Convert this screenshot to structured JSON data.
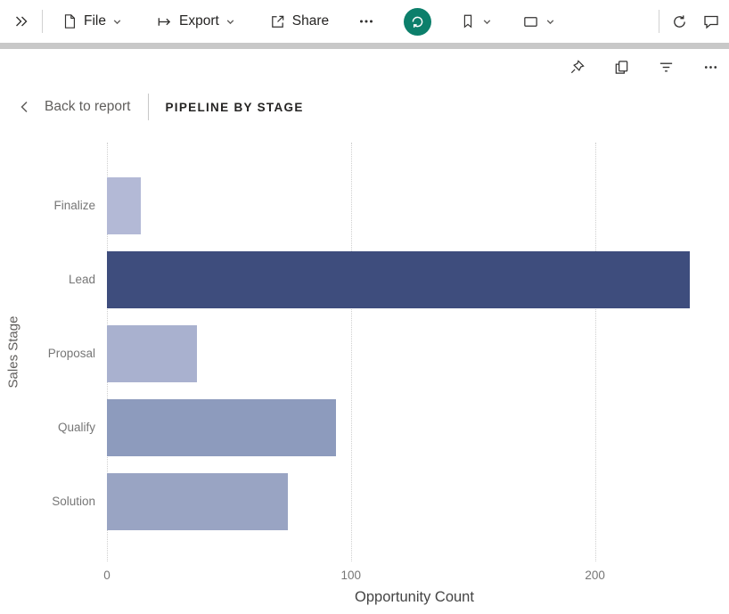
{
  "toolbar": {
    "file_label": "File",
    "export_label": "Export",
    "share_label": "Share",
    "reset_button_color": "#0c7f6b",
    "icons": {
      "expand": "double-chevron-right",
      "file": "document",
      "export": "arrow-from-bar",
      "share": "share-arrow",
      "more": "ellipsis-horizontal",
      "reset": "reset-circular-arrow",
      "bookmark": "bookmark",
      "view": "rectangle-view",
      "refresh": "refresh-circular-arrow",
      "comment": "comment-bubble"
    }
  },
  "visual_header": {
    "icons": {
      "pin": "pin",
      "copy": "copy",
      "filter": "filter-lines",
      "more": "ellipsis-horizontal"
    }
  },
  "nav": {
    "back_label": "Back to report",
    "title": "PIPELINE BY STAGE"
  },
  "chart_data": {
    "type": "bar",
    "orientation": "horizontal",
    "title": "PIPELINE BY STAGE",
    "categories": [
      "Finalize",
      "Lead",
      "Proposal",
      "Qualify",
      "Solution"
    ],
    "values": [
      14,
      239,
      37,
      94,
      74
    ],
    "colors": [
      "#b3b9d6",
      "#3e4d7d",
      "#a9b1cf",
      "#8d9bbd",
      "#99a4c3"
    ],
    "xlabel": "Opportunity Count",
    "ylabel": "Sales Stage",
    "x_ticks": [
      0,
      100,
      200
    ],
    "xlim": [
      0,
      252
    ],
    "grid": "vertical-dotted",
    "legend": false
  }
}
